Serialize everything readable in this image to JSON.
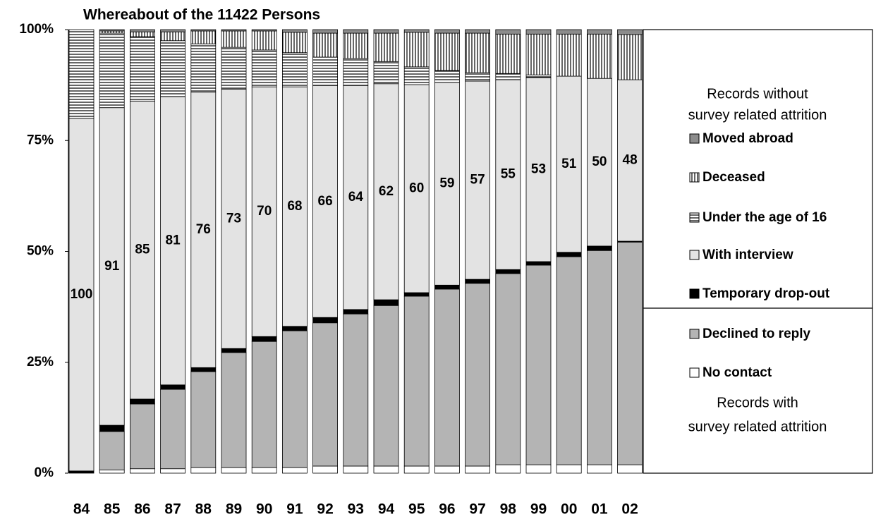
{
  "chart_data": {
    "type": "stacked-bar",
    "title": "Whereabout of the 11422 Persons",
    "categories": [
      "84",
      "85",
      "86",
      "87",
      "88",
      "89",
      "90",
      "91",
      "92",
      "93",
      "94",
      "95",
      "96",
      "97",
      "98",
      "99",
      "00",
      "01",
      "02"
    ],
    "series": [
      {
        "name": "No contact",
        "color": "#ffffff",
        "values": [
          0,
          0.7,
          1.0,
          1.0,
          1.3,
          1.3,
          1.3,
          1.3,
          1.6,
          1.6,
          1.6,
          1.6,
          1.6,
          1.6,
          1.9,
          1.9,
          1.9,
          1.9,
          1.9
        ]
      },
      {
        "name": "Declined to reply",
        "color": "#b4b4b4",
        "values": [
          0,
          8.7,
          14.6,
          17.9,
          21.6,
          25.9,
          28.4,
          30.8,
          32.3,
          34.3,
          36.2,
          38.3,
          39.9,
          41.2,
          43.1,
          45.0,
          46.9,
          48.3,
          50.2
        ]
      },
      {
        "name": "Temporary drop-out",
        "color": "#000000",
        "values": [
          0.5,
          1.4,
          1.1,
          1.0,
          0.9,
          0.9,
          1.1,
          1.0,
          1.2,
          1.0,
          1.3,
          0.8,
          0.9,
          0.9,
          0.9,
          0.8,
          1.0,
          1.0,
          0.2
        ]
      },
      {
        "name": "With interview",
        "color": "#e3e3e3",
        "values": [
          79.5,
          71.6,
          67.2,
          65.0,
          62.1,
          58.5,
          56.3,
          54.0,
          52.3,
          50.5,
          48.7,
          46.9,
          45.7,
          44.7,
          42.8,
          41.5,
          39.7,
          37.8,
          36.4
        ]
      },
      {
        "name": "Under the age of 16",
        "color": "#ffffff",
        "pattern": "horizontal",
        "values": [
          20,
          16.8,
          14.5,
          12.6,
          10.9,
          9.4,
          8.3,
          7.7,
          6.4,
          6.1,
          5.0,
          4.0,
          2.7,
          1.9,
          1.4,
          0.6,
          0,
          0,
          0
        ]
      },
      {
        "name": "Deceased",
        "color": "#ffffff",
        "pattern": "vertical",
        "values": [
          0,
          0.5,
          1.1,
          2.0,
          2.9,
          3.7,
          4.3,
          4.6,
          5.4,
          5.7,
          6.4,
          7.8,
          8.4,
          8.9,
          8.9,
          9.2,
          9.5,
          10.0,
          10.2
        ]
      },
      {
        "name": "Moved abroad",
        "color": "#8c8c8c",
        "values": [
          0,
          0.3,
          0.5,
          0.5,
          0.3,
          0.3,
          0.3,
          0.6,
          0.8,
          0.8,
          0.8,
          0.6,
          0.8,
          0.8,
          1.0,
          1.0,
          1.0,
          1.0,
          1.1
        ]
      }
    ],
    "annotations": [
      100,
      91,
      85,
      81,
      76,
      73,
      70,
      68,
      66,
      64,
      62,
      60,
      59,
      57,
      55,
      53,
      51,
      50,
      48
    ],
    "annotation_series": 3,
    "legend_groups": [
      {
        "title": [
          "Records without",
          "survey related attrition"
        ],
        "series": [
          6,
          5,
          4,
          3,
          2
        ]
      },
      {
        "title": [
          "Records with",
          "survey related attrition"
        ],
        "series": [
          1,
          0
        ]
      }
    ],
    "ylim": [
      0,
      100
    ],
    "yticks": [
      {
        "value": 0,
        "label": "0%"
      },
      {
        "value": 25,
        "label": "25%"
      },
      {
        "value": 50,
        "label": "50%"
      },
      {
        "value": 75,
        "label": "75%"
      },
      {
        "value": 100,
        "label": "100%"
      }
    ]
  }
}
